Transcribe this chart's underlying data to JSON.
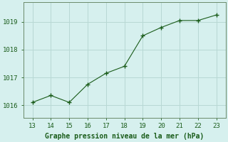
{
  "x": [
    13,
    14,
    15,
    16,
    17,
    18,
    19,
    20,
    21,
    22,
    23
  ],
  "y": [
    1016.1,
    1016.35,
    1016.1,
    1016.75,
    1017.15,
    1017.4,
    1018.5,
    1018.8,
    1019.05,
    1019.05,
    1019.25
  ],
  "xlim": [
    12.5,
    23.5
  ],
  "ylim": [
    1015.55,
    1019.7
  ],
  "yticks": [
    1016,
    1017,
    1018,
    1019
  ],
  "xticks": [
    13,
    14,
    15,
    16,
    17,
    18,
    19,
    20,
    21,
    22,
    23
  ],
  "line_color": "#1a5c1a",
  "marker_color": "#1a5c1a",
  "bg_color": "#d6f0ee",
  "grid_color": "#b8d8d4",
  "xlabel": "Graphe pression niveau de la mer (hPa)",
  "xlabel_color": "#1a5c1a",
  "tick_color": "#1a5c1a",
  "spine_color": "#6a8a6a",
  "xlabel_fontsize": 7,
  "tick_fontsize": 6.5,
  "figwidth": 3.2,
  "figheight": 2.0,
  "dpi": 100
}
